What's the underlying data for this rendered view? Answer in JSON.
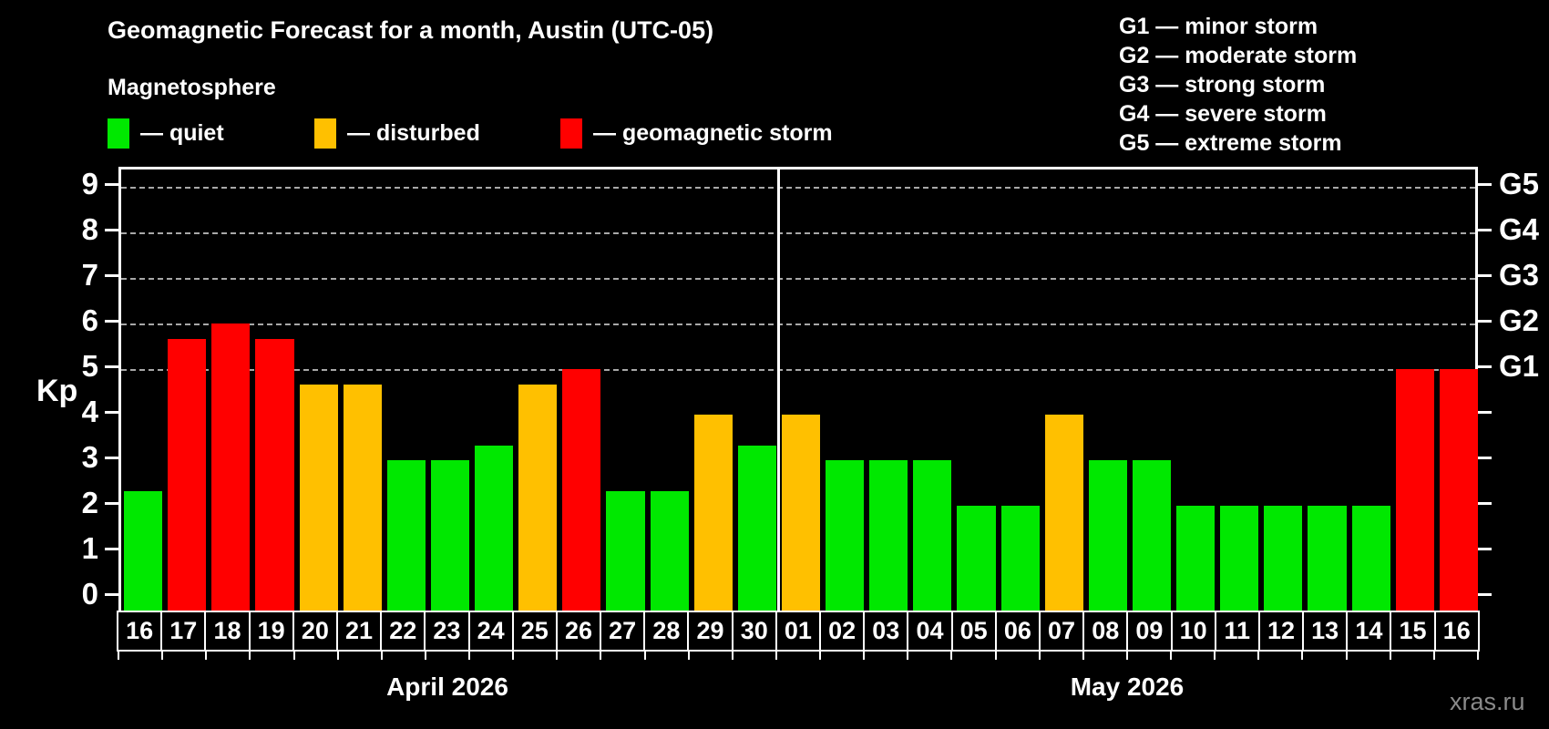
{
  "title": "Geomagnetic Forecast for a month, Austin (UTC-05)",
  "legend": {
    "title": "Magnetosphere",
    "items": [
      {
        "key": "quiet",
        "label": "— quiet",
        "color": "#00e800"
      },
      {
        "key": "disturbed",
        "label": "— disturbed",
        "color": "#ffc000"
      },
      {
        "key": "storm",
        "label": "— geomagnetic storm",
        "color": "#ff0000"
      }
    ]
  },
  "g_scale_legend": [
    "G1 — minor storm",
    "G2 — moderate storm",
    "G3 — strong storm",
    "G4 — severe storm",
    "G5 — extreme storm"
  ],
  "watermark": "xras.ru",
  "chart_data": {
    "type": "bar",
    "ylabel": "Kp",
    "ylim": [
      0,
      9
    ],
    "yticks": [
      0,
      1,
      2,
      3,
      4,
      5,
      6,
      7,
      8,
      9
    ],
    "gridlines_at_kp": [
      5,
      6,
      7,
      8,
      9
    ],
    "grid_style": "dashed horizontal lines at storm levels only",
    "right_axis_labels": [
      {
        "label": "G1",
        "kp": 5
      },
      {
        "label": "G2",
        "kp": 6
      },
      {
        "label": "G3",
        "kp": 7
      },
      {
        "label": "G4",
        "kp": 8
      },
      {
        "label": "G5",
        "kp": 9
      }
    ],
    "months": [
      {
        "label": "April 2026",
        "days": [
          {
            "day": "16",
            "kp": 2.33,
            "status": "quiet"
          },
          {
            "day": "17",
            "kp": 5.67,
            "status": "storm"
          },
          {
            "day": "18",
            "kp": 6.0,
            "status": "storm"
          },
          {
            "day": "19",
            "kp": 5.67,
            "status": "storm"
          },
          {
            "day": "20",
            "kp": 4.67,
            "status": "disturbed"
          },
          {
            "day": "21",
            "kp": 4.67,
            "status": "disturbed"
          },
          {
            "day": "22",
            "kp": 3.0,
            "status": "quiet"
          },
          {
            "day": "23",
            "kp": 3.0,
            "status": "quiet"
          },
          {
            "day": "24",
            "kp": 3.33,
            "status": "quiet"
          },
          {
            "day": "25",
            "kp": 4.67,
            "status": "disturbed"
          },
          {
            "day": "26",
            "kp": 5.0,
            "status": "storm"
          },
          {
            "day": "27",
            "kp": 2.33,
            "status": "quiet"
          },
          {
            "day": "28",
            "kp": 2.33,
            "status": "quiet"
          },
          {
            "day": "29",
            "kp": 4.0,
            "status": "disturbed"
          },
          {
            "day": "30",
            "kp": 3.33,
            "status": "quiet"
          }
        ]
      },
      {
        "label": "May 2026",
        "days": [
          {
            "day": "01",
            "kp": 4.0,
            "status": "disturbed"
          },
          {
            "day": "02",
            "kp": 3.0,
            "status": "quiet"
          },
          {
            "day": "03",
            "kp": 3.0,
            "status": "quiet"
          },
          {
            "day": "04",
            "kp": 3.0,
            "status": "quiet"
          },
          {
            "day": "05",
            "kp": 2.0,
            "status": "quiet"
          },
          {
            "day": "06",
            "kp": 2.0,
            "status": "quiet"
          },
          {
            "day": "07",
            "kp": 4.0,
            "status": "disturbed"
          },
          {
            "day": "08",
            "kp": 3.0,
            "status": "quiet"
          },
          {
            "day": "09",
            "kp": 3.0,
            "status": "quiet"
          },
          {
            "day": "10",
            "kp": 2.0,
            "status": "quiet"
          },
          {
            "day": "11",
            "kp": 2.0,
            "status": "quiet"
          },
          {
            "day": "12",
            "kp": 2.0,
            "status": "quiet"
          },
          {
            "day": "13",
            "kp": 2.0,
            "status": "quiet"
          },
          {
            "day": "14",
            "kp": 2.0,
            "status": "quiet"
          },
          {
            "day": "15",
            "kp": 5.0,
            "status": "storm"
          },
          {
            "day": "16",
            "kp": 5.0,
            "status": "storm"
          }
        ]
      }
    ]
  }
}
